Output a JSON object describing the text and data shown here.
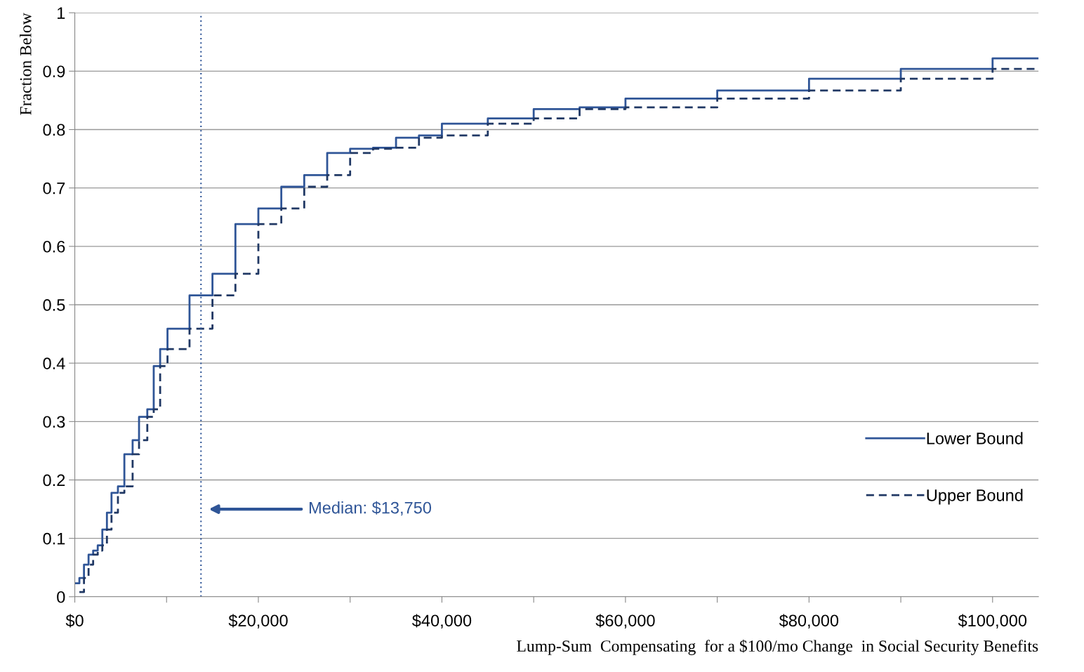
{
  "chart_data": {
    "type": "step",
    "xlabel": "Lump-Sum  Compensating  for a $100/mo Change  in Social Security Benefits",
    "ylabel": "Fraction Below",
    "series": [
      {
        "name": "Lower Bound",
        "color": "#2f5597",
        "line_style": "solid",
        "x": [
          0,
          500,
          1000,
          1500,
          2000,
          2500,
          3000,
          3500,
          4000,
          4700,
          5400,
          6300,
          7000,
          7900,
          8600,
          9300,
          10100,
          12500,
          15000,
          17500,
          20000,
          22500,
          25000,
          27500,
          30000,
          32500,
          35000,
          37500,
          40000,
          45000,
          50000,
          55000,
          60000,
          70000,
          80000,
          90000,
          100000,
          105000
        ],
        "values": [
          0.023,
          0.032,
          0.055,
          0.072,
          0.079,
          0.088,
          0.115,
          0.144,
          0.178,
          0.189,
          0.244,
          0.268,
          0.308,
          0.321,
          0.395,
          0.424,
          0.459,
          0.516,
          0.553,
          0.638,
          0.665,
          0.702,
          0.722,
          0.76,
          0.767,
          0.769,
          0.786,
          0.79,
          0.81,
          0.819,
          0.835,
          0.838,
          0.853,
          0.867,
          0.887,
          0.904,
          0.922,
          0.922
        ]
      },
      {
        "name": "Upper Bound",
        "color": "#203864",
        "line_style": "dashed",
        "x": [
          500,
          1000,
          1500,
          2000,
          2500,
          3000,
          3500,
          4000,
          4700,
          5400,
          6300,
          7000,
          7900,
          8600,
          9300,
          10100,
          12500,
          15000,
          17500,
          20000,
          22500,
          25000,
          27500,
          30000,
          32500,
          35000,
          37500,
          40000,
          45000,
          50000,
          55000,
          60000,
          70000,
          80000,
          90000,
          100000,
          105000
        ],
        "values": [
          0.008,
          0.032,
          0.055,
          0.072,
          0.079,
          0.088,
          0.115,
          0.144,
          0.178,
          0.189,
          0.244,
          0.268,
          0.308,
          0.321,
          0.395,
          0.424,
          0.459,
          0.516,
          0.553,
          0.638,
          0.665,
          0.702,
          0.722,
          0.76,
          0.767,
          0.769,
          0.786,
          0.79,
          0.81,
          0.819,
          0.835,
          0.838,
          0.853,
          0.867,
          0.887,
          0.904,
          0.904
        ]
      }
    ],
    "ref_lines": [
      {
        "axis": "x",
        "value": 13750,
        "label": "Median: $13,750",
        "color": "#2f5597",
        "line_style": "dotted"
      }
    ],
    "xlim": [
      0,
      105000
    ],
    "xticks": [
      {
        "value": 0,
        "label": "$0"
      },
      {
        "value": 10000,
        "label": null
      },
      {
        "value": 20000,
        "label": "$20,000"
      },
      {
        "value": 30000,
        "label": null
      },
      {
        "value": 40000,
        "label": "$40,000"
      },
      {
        "value": 50000,
        "label": null
      },
      {
        "value": 60000,
        "label": "$60,000"
      },
      {
        "value": 70000,
        "label": null
      },
      {
        "value": 80000,
        "label": "$80,000"
      },
      {
        "value": 90000,
        "label": null
      },
      {
        "value": 100000,
        "label": "$100,000"
      }
    ],
    "ylim": [
      0,
      1
    ],
    "yticks": [
      0,
      0.1,
      0.2,
      0.3,
      0.4,
      0.5,
      0.6,
      0.7,
      0.8,
      0.9,
      1
    ],
    "grid": "y",
    "legend": "right"
  }
}
